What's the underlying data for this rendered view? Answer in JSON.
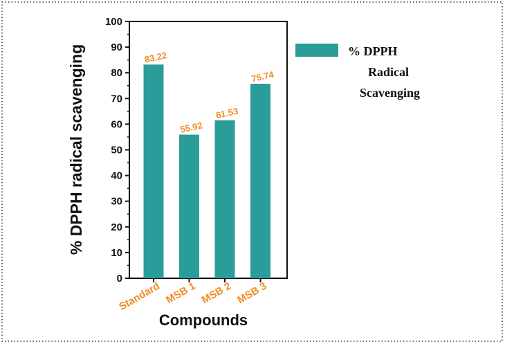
{
  "chart_data": {
    "type": "bar",
    "categories": [
      "Standard",
      "MSB 1",
      "MSB 2",
      "MSB 3"
    ],
    "series": [
      {
        "name": "% DPPH Radical Scavenging",
        "values": [
          83.22,
          55.92,
          61.53,
          75.74
        ]
      }
    ],
    "data_labels": [
      "83.22",
      "55.92",
      "61.53",
      "75.74"
    ],
    "xlabel": "Compounds",
    "ylabel": "% DPPH radical scavenging",
    "ylim": [
      0,
      100
    ],
    "yticks": [
      0,
      10,
      20,
      30,
      40,
      50,
      60,
      70,
      80,
      90,
      100
    ],
    "grid": false,
    "legend_position": "top-right",
    "legend_lines": [
      "% DPPH",
      "Radical",
      "Scavenging"
    ],
    "bar_color": "#2a9d9a",
    "label_color": "#f28c28"
  }
}
